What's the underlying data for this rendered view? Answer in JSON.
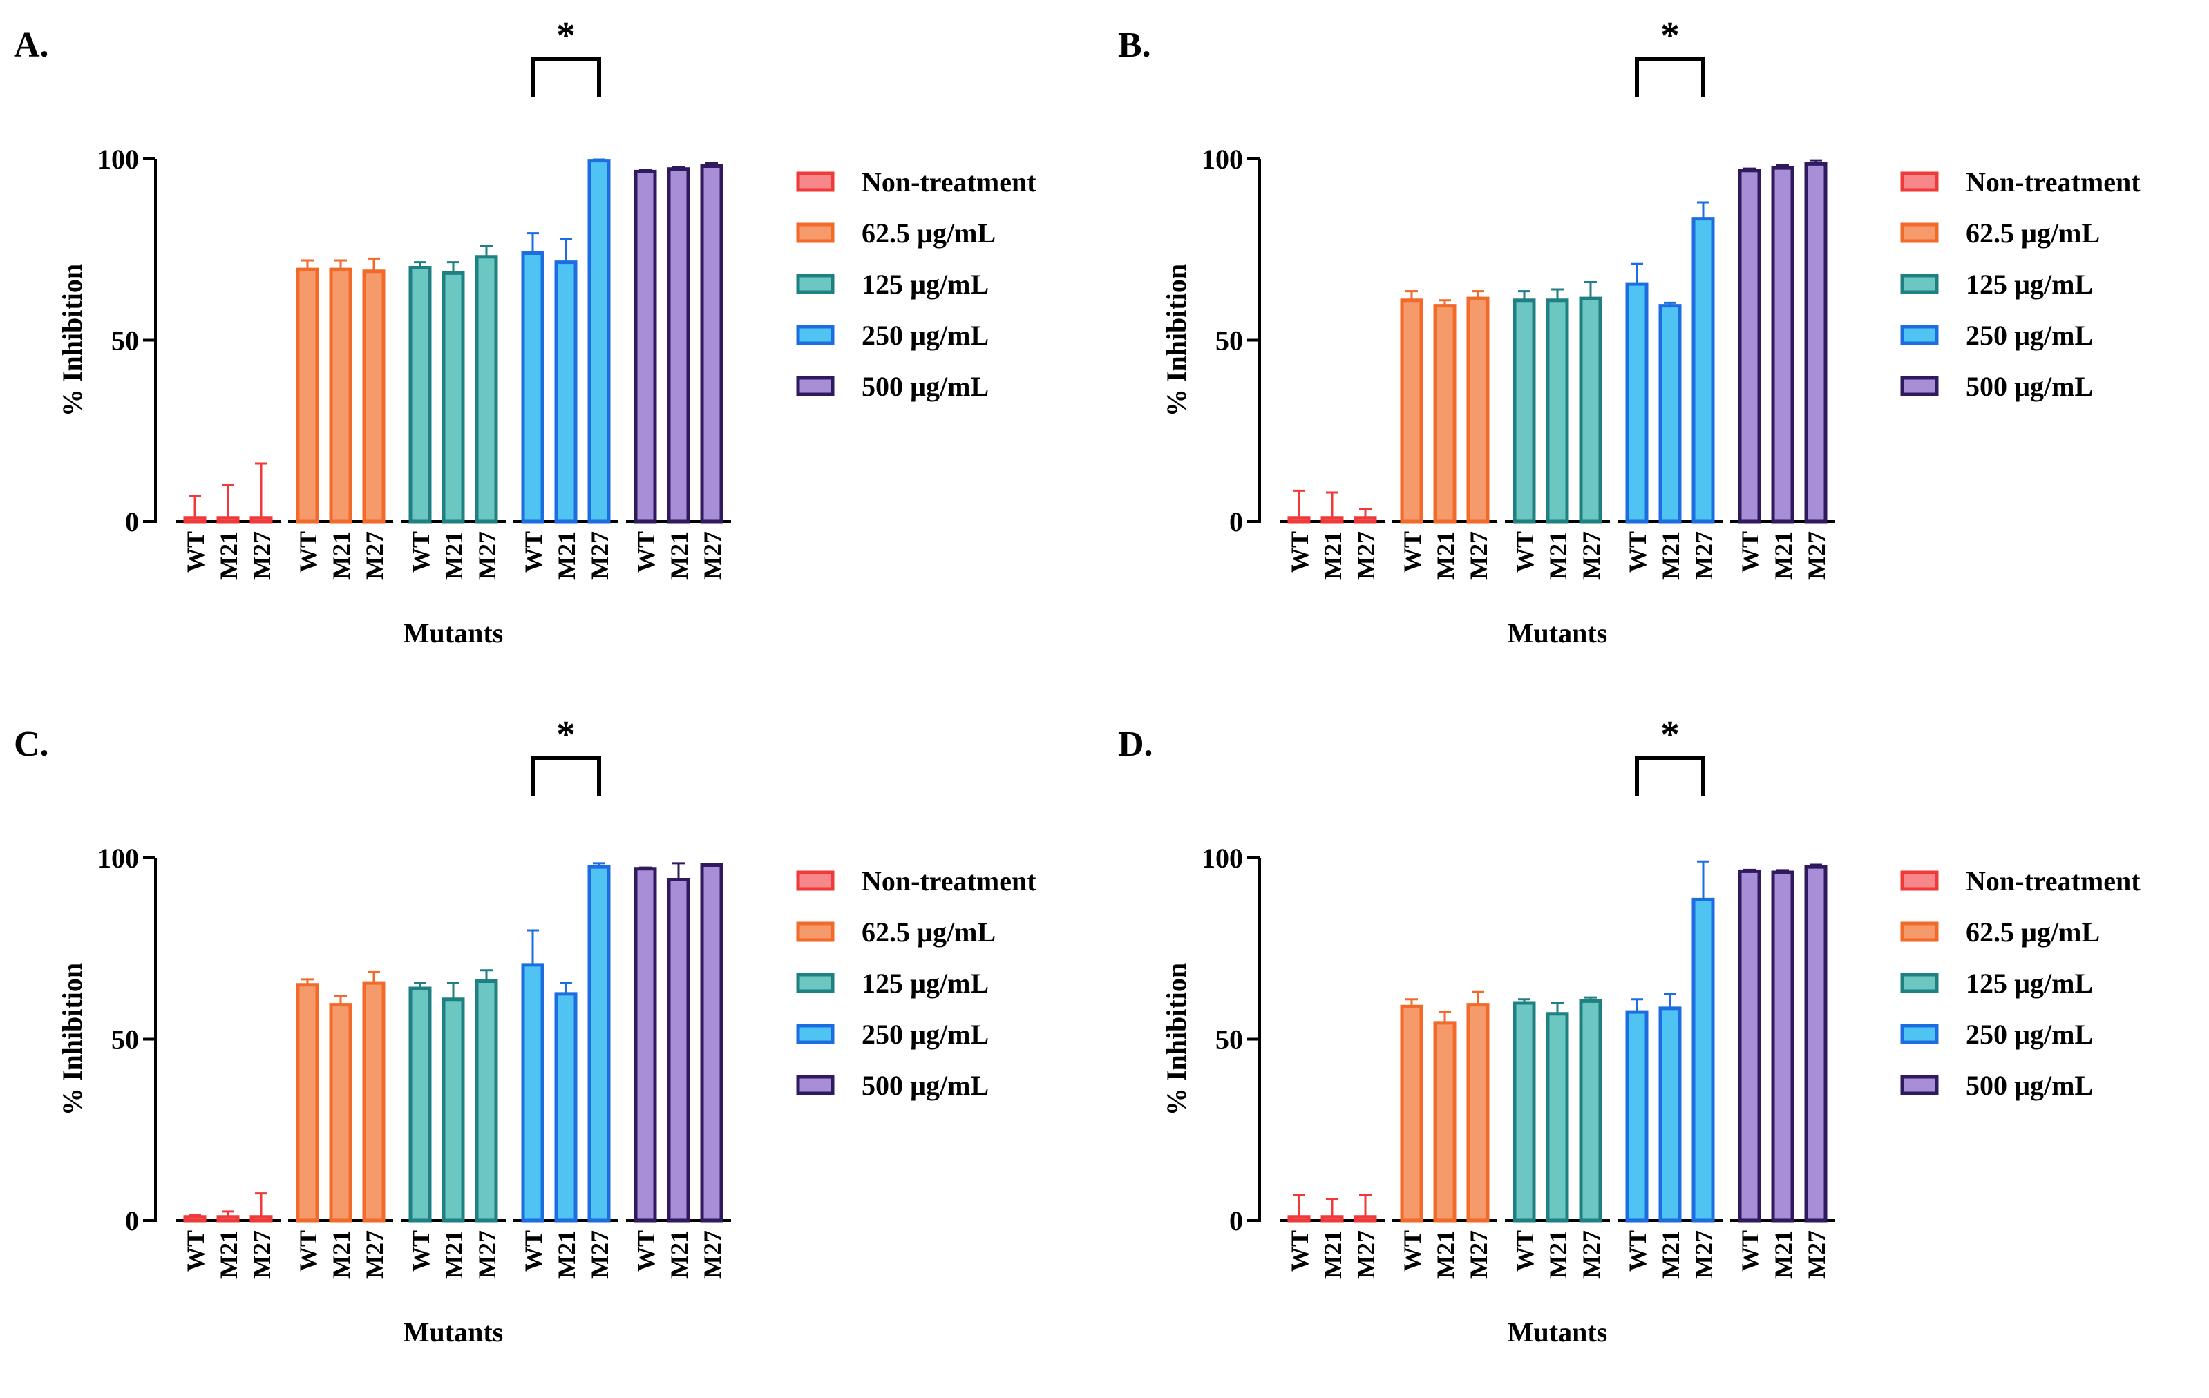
{
  "legend": [
    {
      "label": "Non-treatment",
      "color": "#F03A3A",
      "fill": "#F7878A"
    },
    {
      "label": "62.5 µg/mL",
      "color": "#F26A2A",
      "fill": "#F59A6B"
    },
    {
      "label": "125 µg/mL",
      "color": "#1E8080",
      "fill": "#6CC6C2"
    },
    {
      "label": "250 µg/mL",
      "color": "#1E6DE0",
      "fill": "#4FC4F2"
    },
    {
      "label": "500 µg/mL",
      "color": "#2E1A5C",
      "fill": "#A88ED6"
    }
  ],
  "chart_data": [
    {
      "panel": "A.",
      "type": "bar",
      "ylabel": "% Inhibition",
      "xlabel": "Mutants",
      "ylim": [
        0,
        100
      ],
      "yticks": [
        0,
        50,
        100
      ],
      "categories": [
        "WT",
        "M21",
        "M27"
      ],
      "series": [
        {
          "name": "Non-treatment",
          "values": [
            1,
            1,
            1
          ],
          "errors": [
            6,
            9,
            15
          ]
        },
        {
          "name": "62.5 µg/mL",
          "values": [
            69.5,
            69.5,
            69
          ],
          "errors": [
            2.5,
            2.5,
            3.5
          ]
        },
        {
          "name": "125 µg/mL",
          "values": [
            70,
            68.5,
            73
          ],
          "errors": [
            1.5,
            3,
            3
          ]
        },
        {
          "name": "250 µg/mL",
          "values": [
            74,
            71.5,
            99.5
          ],
          "errors": [
            5.5,
            6.5,
            0.3
          ]
        },
        {
          "name": "500 µg/mL",
          "values": [
            96.5,
            97.2,
            98
          ],
          "errors": [
            0.5,
            0.6,
            0.8
          ]
        }
      ],
      "significance": {
        "label": "*",
        "series": "250 µg/mL",
        "from": "WT",
        "to": "M27"
      }
    },
    {
      "panel": "B.",
      "type": "bar",
      "ylabel": "% Inhibition",
      "xlabel": "Mutants",
      "ylim": [
        0,
        100
      ],
      "yticks": [
        0,
        50,
        100
      ],
      "categories": [
        "WT",
        "M21",
        "M27"
      ],
      "series": [
        {
          "name": "Non-treatment",
          "values": [
            1,
            1,
            1
          ],
          "errors": [
            7.5,
            7,
            2.5
          ]
        },
        {
          "name": "62.5 µg/mL",
          "values": [
            61,
            59.5,
            61.5
          ],
          "errors": [
            2.5,
            1.5,
            2
          ]
        },
        {
          "name": "125 µg/mL",
          "values": [
            61,
            61,
            61.5
          ],
          "errors": [
            2.5,
            3,
            4.5
          ]
        },
        {
          "name": "250 µg/mL",
          "values": [
            65.5,
            59.5,
            83.5
          ],
          "errors": [
            5.5,
            0.8,
            4.5
          ]
        },
        {
          "name": "500 µg/mL",
          "values": [
            96.8,
            97.5,
            98.6
          ],
          "errors": [
            0.5,
            0.8,
            1
          ]
        }
      ],
      "significance": {
        "label": "*",
        "series": "250 µg/mL",
        "from": "WT",
        "to": "M27"
      }
    },
    {
      "panel": "C.",
      "type": "bar",
      "ylabel": "% Inhibition",
      "xlabel": "Mutants",
      "ylim": [
        0,
        100
      ],
      "yticks": [
        0,
        50,
        100
      ],
      "categories": [
        "WT",
        "M21",
        "M27"
      ],
      "series": [
        {
          "name": "Non-treatment",
          "values": [
            1,
            1,
            1
          ],
          "errors": [
            0.5,
            1.5,
            6.5
          ]
        },
        {
          "name": "62.5 µg/mL",
          "values": [
            65,
            59.5,
            65.5
          ],
          "errors": [
            1.5,
            2.5,
            3
          ]
        },
        {
          "name": "125 µg/mL",
          "values": [
            64,
            61,
            66
          ],
          "errors": [
            1.5,
            4.5,
            3
          ]
        },
        {
          "name": "250 µg/mL",
          "values": [
            70.5,
            62.5,
            97.5
          ],
          "errors": [
            9.5,
            3,
            1
          ]
        },
        {
          "name": "500 µg/mL",
          "values": [
            97,
            94,
            98
          ],
          "errors": [
            0.3,
            4.5,
            0.3
          ]
        }
      ],
      "significance": {
        "label": "*",
        "series": "250 µg/mL",
        "from": "WT",
        "to": "M27"
      }
    },
    {
      "panel": "D.",
      "type": "bar",
      "ylabel": "% Inhibition",
      "xlabel": "Mutants",
      "ylim": [
        0,
        100
      ],
      "yticks": [
        0,
        50,
        100
      ],
      "categories": [
        "WT",
        "M21",
        "M27"
      ],
      "series": [
        {
          "name": "Non-treatment",
          "values": [
            1,
            1,
            1
          ],
          "errors": [
            6,
            5,
            6
          ]
        },
        {
          "name": "62.5 µg/mL",
          "values": [
            59,
            54.5,
            59.5
          ],
          "errors": [
            2,
            3,
            3.5
          ]
        },
        {
          "name": "125 µg/mL",
          "values": [
            60,
            57,
            60.5
          ],
          "errors": [
            1,
            3,
            1
          ]
        },
        {
          "name": "250 µg/mL",
          "values": [
            57.5,
            58.5,
            88.5
          ],
          "errors": [
            3.5,
            4,
            10.5
          ]
        },
        {
          "name": "500 µg/mL",
          "values": [
            96.3,
            96,
            97.5
          ],
          "errors": [
            0.4,
            0.6,
            0.6
          ]
        }
      ],
      "significance": {
        "label": "*",
        "series": "250 µg/mL",
        "from": "WT",
        "to": "M27"
      }
    }
  ]
}
